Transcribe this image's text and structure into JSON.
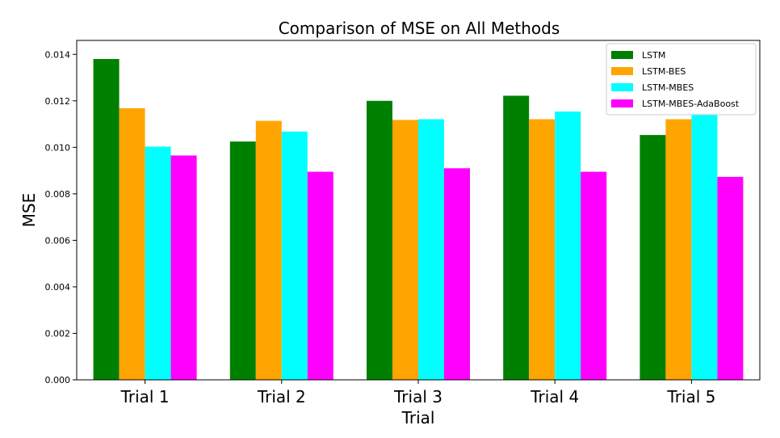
{
  "chart_data": {
    "type": "bar",
    "title": "Comparison of MSE on All Methods",
    "xlabel": "Trial",
    "ylabel": "MSE",
    "categories": [
      "Trial 1",
      "Trial 2",
      "Trial 3",
      "Trial 4",
      "Trial 5"
    ],
    "ylim": [
      0,
      0.0146
    ],
    "yticks": [
      "0.000",
      "0.002",
      "0.004",
      "0.006",
      "0.008",
      "0.010",
      "0.012",
      "0.014"
    ],
    "grid": false,
    "legend_position": "top-right",
    "series": [
      {
        "name": "LSTM",
        "color": "#008000",
        "values": [
          0.0138,
          0.01025,
          0.012,
          0.01222,
          0.01053
        ]
      },
      {
        "name": "LSTM-BES",
        "color": "#ffa500",
        "values": [
          0.01168,
          0.01114,
          0.01118,
          0.01121,
          0.01121
        ]
      },
      {
        "name": "LSTM-MBES",
        "color": "#00ffff",
        "values": [
          0.01003,
          0.01068,
          0.01121,
          0.01154,
          0.01147
        ]
      },
      {
        "name": "LSTM-MBES-AdaBoost",
        "color": "#ff00ff",
        "values": [
          0.00965,
          0.00895,
          0.0091,
          0.00895,
          0.00873
        ]
      }
    ]
  }
}
